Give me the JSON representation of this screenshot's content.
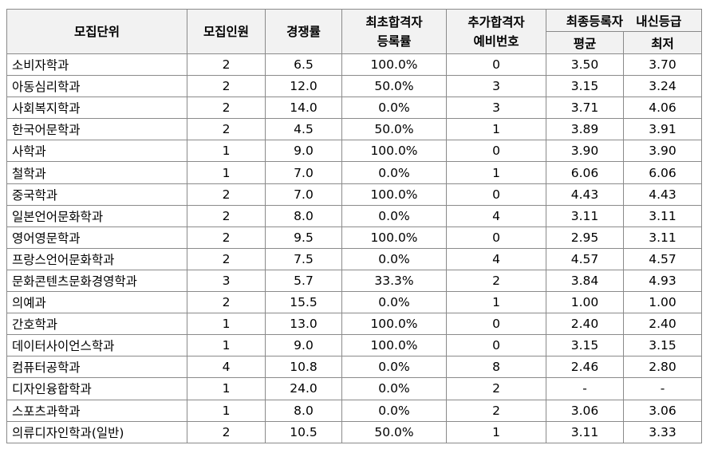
{
  "table": {
    "headers": {
      "unit": "모집단위",
      "quota": "모집인원",
      "competition": "경쟁률",
      "first_reg_line1": "최초합격자",
      "first_reg_line2": "등록률",
      "extra_line1": "추가합격자",
      "extra_line2": "예비번호",
      "final_group": "최종등록자   내신등급",
      "avg": "평균",
      "min": "최저"
    },
    "rows": [
      {
        "unit": "소비자학과",
        "quota": "2",
        "competition": "6.5",
        "first_reg": "100.0%",
        "extra": "0",
        "avg": "3.50",
        "min": "3.70"
      },
      {
        "unit": "아동심리학과",
        "quota": "2",
        "competition": "12.0",
        "first_reg": "50.0%",
        "extra": "3",
        "avg": "3.15",
        "min": "3.24"
      },
      {
        "unit": "사회복지학과",
        "quota": "2",
        "competition": "14.0",
        "first_reg": "0.0%",
        "extra": "3",
        "avg": "3.71",
        "min": "4.06"
      },
      {
        "unit": "한국어문학과",
        "quota": "2",
        "competition": "4.5",
        "first_reg": "50.0%",
        "extra": "1",
        "avg": "3.89",
        "min": "3.91"
      },
      {
        "unit": "사학과",
        "quota": "1",
        "competition": "9.0",
        "first_reg": "100.0%",
        "extra": "0",
        "avg": "3.90",
        "min": "3.90"
      },
      {
        "unit": "철학과",
        "quota": "1",
        "competition": "7.0",
        "first_reg": "0.0%",
        "extra": "1",
        "avg": "6.06",
        "min": "6.06"
      },
      {
        "unit": "중국학과",
        "quota": "2",
        "competition": "7.0",
        "first_reg": "100.0%",
        "extra": "0",
        "avg": "4.43",
        "min": "4.43"
      },
      {
        "unit": "일본언어문화학과",
        "quota": "2",
        "competition": "8.0",
        "first_reg": "0.0%",
        "extra": "4",
        "avg": "3.11",
        "min": "3.11"
      },
      {
        "unit": "영어영문학과",
        "quota": "2",
        "competition": "9.5",
        "first_reg": "100.0%",
        "extra": "0",
        "avg": "2.95",
        "min": "3.11"
      },
      {
        "unit": "프랑스언어문화학과",
        "quota": "2",
        "competition": "7.5",
        "first_reg": "0.0%",
        "extra": "4",
        "avg": "4.57",
        "min": "4.57"
      },
      {
        "unit": "문화콘텐츠문화경영학과",
        "quota": "3",
        "competition": "5.7",
        "first_reg": "33.3%",
        "extra": "2",
        "avg": "3.84",
        "min": "4.93"
      },
      {
        "unit": "의예과",
        "quota": "2",
        "competition": "15.5",
        "first_reg": "0.0%",
        "extra": "1",
        "avg": "1.00",
        "min": "1.00"
      },
      {
        "unit": "간호학과",
        "quota": "1",
        "competition": "13.0",
        "first_reg": "100.0%",
        "extra": "0",
        "avg": "2.40",
        "min": "2.40"
      },
      {
        "unit": "데이터사이언스학과",
        "quota": "1",
        "competition": "9.0",
        "first_reg": "100.0%",
        "extra": "0",
        "avg": "3.15",
        "min": "3.15"
      },
      {
        "unit": "컴퓨터공학과",
        "quota": "4",
        "competition": "10.8",
        "first_reg": "0.0%",
        "extra": "8",
        "avg": "2.46",
        "min": "2.80"
      },
      {
        "unit": "디자인융합학과",
        "quota": "1",
        "competition": "24.0",
        "first_reg": "0.0%",
        "extra": "2",
        "avg": "-",
        "min": "-"
      },
      {
        "unit": "스포츠과학과",
        "quota": "1",
        "competition": "8.0",
        "first_reg": "0.0%",
        "extra": "2",
        "avg": "3.06",
        "min": "3.06"
      },
      {
        "unit": "의류디자인학과(일반)",
        "quota": "2",
        "competition": "10.5",
        "first_reg": "50.0%",
        "extra": "1",
        "avg": "3.11",
        "min": "3.33"
      }
    ]
  }
}
